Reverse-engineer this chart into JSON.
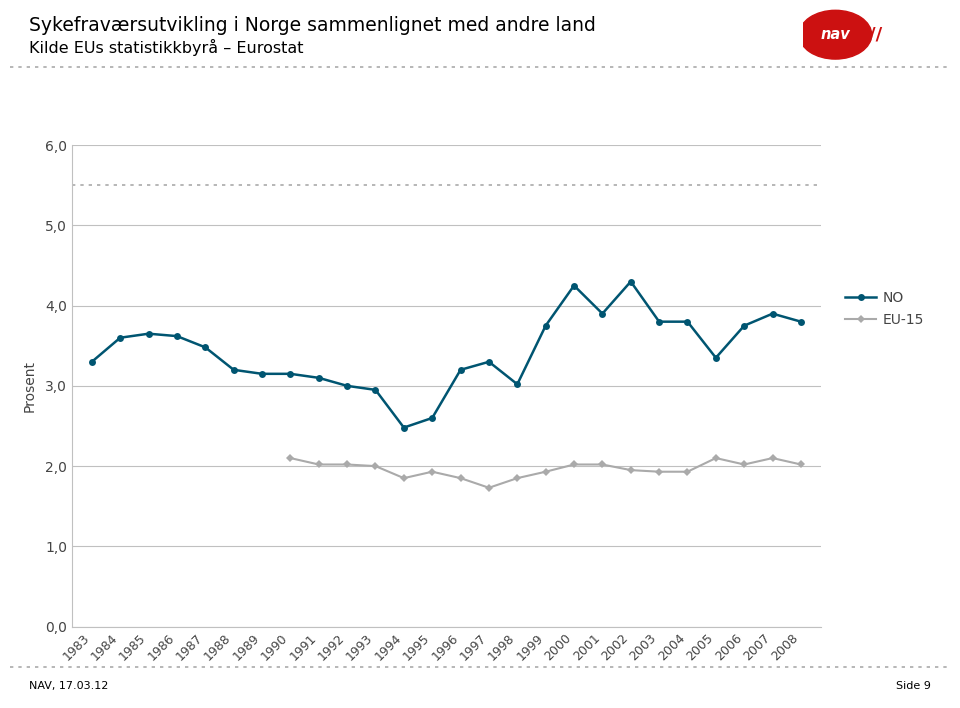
{
  "title_line1": "Sykefraværsutvikling i Norge sammenlignet med andre land",
  "title_line2": "Kilde EUs statistikkbyrå – Eurostat",
  "ylabel": "Prosent",
  "footer_left": "NAV, 17.03.12",
  "footer_right": "Side 9",
  "ylim": [
    0.0,
    6.0
  ],
  "yticks": [
    0.0,
    1.0,
    2.0,
    3.0,
    4.0,
    5.0,
    6.0
  ],
  "ytick_labels": [
    "0,0",
    "1,0",
    "2,0",
    "3,0",
    "4,0",
    "5,0",
    "6,0"
  ],
  "years": [
    1983,
    1984,
    1985,
    1986,
    1987,
    1988,
    1989,
    1990,
    1991,
    1992,
    1993,
    1994,
    1995,
    1996,
    1997,
    1998,
    1999,
    2000,
    2001,
    2002,
    2003,
    2004,
    2005,
    2006,
    2007,
    2008
  ],
  "NO": [
    3.3,
    3.6,
    3.65,
    3.62,
    3.48,
    3.2,
    3.15,
    3.15,
    3.1,
    3.0,
    2.95,
    2.48,
    2.6,
    3.2,
    3.3,
    3.02,
    3.75,
    4.25,
    3.9,
    4.3,
    3.8,
    3.8,
    3.35,
    3.75,
    3.9,
    3.8
  ],
  "EU15": [
    null,
    null,
    null,
    null,
    null,
    null,
    null,
    2.1,
    2.02,
    2.02,
    2.0,
    1.85,
    1.93,
    1.85,
    1.73,
    1.85,
    1.93,
    2.02,
    2.02,
    1.95,
    1.93,
    1.93,
    2.1,
    2.02,
    2.1,
    2.02
  ],
  "NO_color": "#005571",
  "EU15_color": "#aaaaaa",
  "bg_color": "#ffffff",
  "grid_color": "#c0c0c0",
  "dotted_color": "#aaaaaa",
  "legend_NO": "NO",
  "legend_EU15": "EU-15",
  "nav_red": "#cc1111"
}
